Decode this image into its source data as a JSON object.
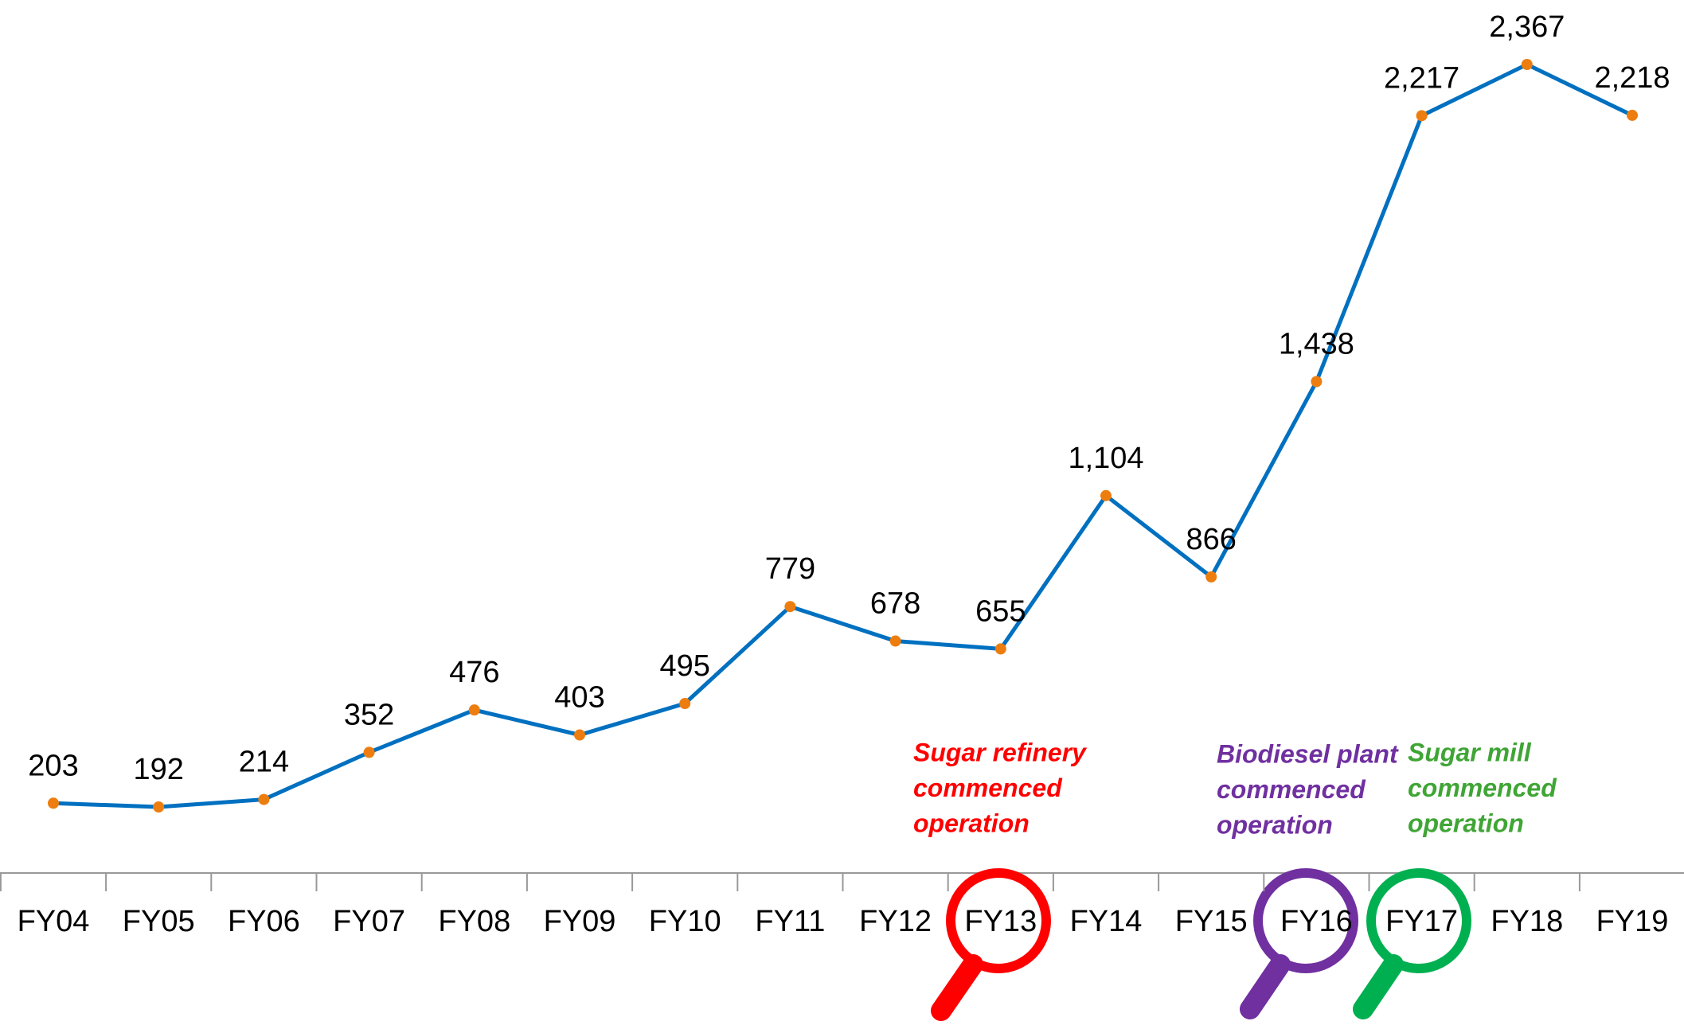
{
  "chart_data": {
    "type": "line",
    "categories": [
      "FY04",
      "FY05",
      "FY06",
      "FY07",
      "FY08",
      "FY09",
      "FY10",
      "FY11",
      "FY12",
      "FY13",
      "FY14",
      "FY15",
      "FY16",
      "FY17",
      "FY18",
      "FY19"
    ],
    "series": [
      {
        "color": "#0070c0",
        "marker_color": "#ed7d0e",
        "values": [
          203,
          192,
          214,
          352,
          476,
          403,
          495,
          779,
          678,
          655,
          1104,
          866,
          1438,
          2217,
          2367,
          2218
        ],
        "value_labels": [
          "203",
          "192",
          "214",
          "352",
          "476",
          "403",
          "495",
          "779",
          "678",
          "655",
          "1,104",
          "866",
          "1,438",
          "2,217",
          "2,367",
          "2,218"
        ]
      }
    ],
    "annotations": [
      {
        "lines": [
          "Sugar refinery",
          "commenced",
          "operation"
        ],
        "color": "#ff0000"
      },
      {
        "lines": [
          "Biodiesel plant",
          "commenced",
          "operation"
        ],
        "color": "#7030a0"
      },
      {
        "lines": [
          "Sugar mill",
          "commenced",
          "operation"
        ],
        "color": "#3fa535"
      }
    ]
  }
}
